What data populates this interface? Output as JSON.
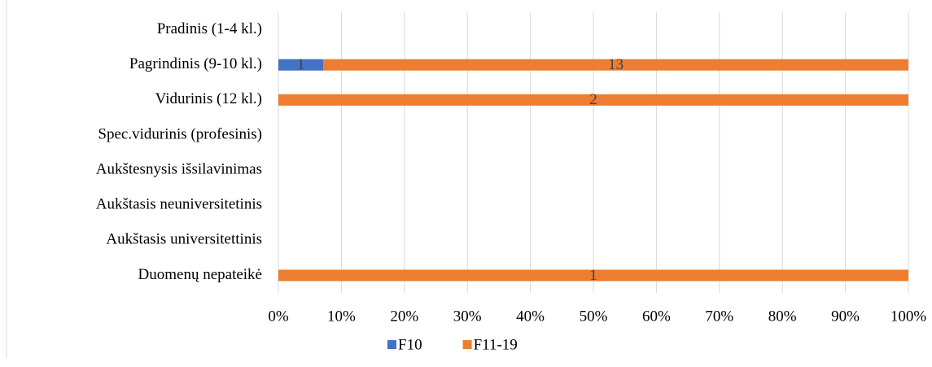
{
  "chart_data": {
    "type": "bar",
    "orientation": "horizontal",
    "stacking": "percent",
    "categories": [
      "Pradinis (1-4 kl.)",
      "Pagrindinis (9-10 kl.)",
      "Vidurinis (12 kl.)",
      "Spec.vidurinis (profesinis)",
      "Aukštesnysis išsilavinimas",
      "Aukštasis neuniversitetinis",
      "Aukštasis universitettinis",
      "Duomenų nepateikė"
    ],
    "series": [
      {
        "name": "F10",
        "color": "#4472c4",
        "values": [
          null,
          1,
          null,
          null,
          null,
          null,
          null,
          null
        ]
      },
      {
        "name": "F11-19",
        "color": "#ed7d31",
        "values": [
          null,
          13,
          2,
          null,
          null,
          null,
          null,
          1
        ]
      }
    ],
    "xlim": [
      0,
      100
    ],
    "xticks": [
      {
        "value": 0,
        "label": "0%"
      },
      {
        "value": 10,
        "label": "10%"
      },
      {
        "value": 20,
        "label": "20%"
      },
      {
        "value": 30,
        "label": "30%"
      },
      {
        "value": 40,
        "label": "40%"
      },
      {
        "value": 50,
        "label": "50%"
      },
      {
        "value": 60,
        "label": "60%"
      },
      {
        "value": 70,
        "label": "70%"
      },
      {
        "value": 80,
        "label": "80%"
      },
      {
        "value": 90,
        "label": "90%"
      },
      {
        "value": 100,
        "label": "100%"
      }
    ],
    "grid": true,
    "legend": "bottom"
  }
}
